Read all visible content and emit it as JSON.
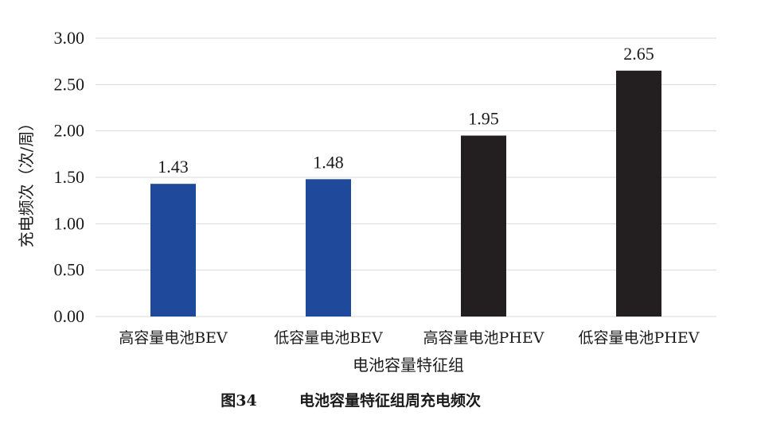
{
  "caption": {
    "number": "图34",
    "text": "电池容量特征组周充电频次"
  },
  "colors": {
    "bev": "#1f4a9c",
    "phev": "#231f20",
    "grid": "#d9d9d9"
  },
  "chart_data": {
    "type": "bar",
    "categories": [
      "高容量电池BEV",
      "低容量电池BEV",
      "高容量电池PHEV",
      "低容量电池PHEV"
    ],
    "values": [
      1.43,
      1.48,
      1.95,
      2.65
    ],
    "value_labels": [
      "1.43",
      "1.48",
      "1.95",
      "2.65"
    ],
    "bar_colors": [
      "#1f4a9c",
      "#1f4a9c",
      "#231f20",
      "#231f20"
    ],
    "xlabel": "电池容量特征组",
    "ylabel": "充电频次（次/周）",
    "ylim": [
      0,
      3
    ],
    "yticks": [
      0,
      0.5,
      1,
      1.5,
      2,
      2.5,
      3
    ],
    "ytick_labels": [
      "0.00",
      "0.50",
      "1.00",
      "1.50",
      "2.00",
      "2.50",
      "3.00"
    ],
    "grid": true,
    "legend": "none"
  }
}
